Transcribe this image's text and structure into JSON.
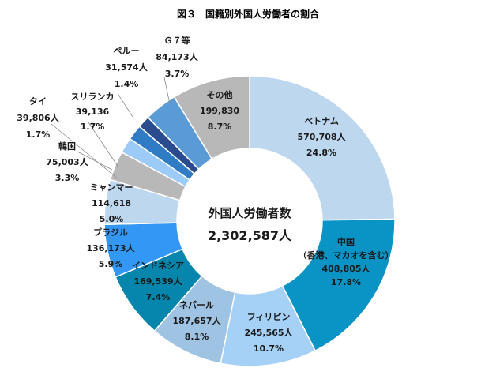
{
  "chart_data": {
    "type": "pie",
    "title": "図３　国籍別外国人労働者の割合",
    "center_title": "外国人労働者数",
    "center_total": "2,302,587人",
    "slices": [
      {
        "label": "ベトナム",
        "count": "570,708人",
        "percent": "24.8%",
        "value": 570708,
        "color": "#bdd7ee"
      },
      {
        "label": "中国",
        "sublabel": "（香港、マカオを含む）",
        "count": "408,805人",
        "percent": "17.8%",
        "value": 408805,
        "color": "#0a94c6"
      },
      {
        "label": "フィリピン",
        "count": "245,565人",
        "percent": "10.7%",
        "value": 245565,
        "color": "#a6d1f7"
      },
      {
        "label": "ネパール",
        "count": "187,657人",
        "percent": "8.1%",
        "value": 187657,
        "color": "#9fc3e3"
      },
      {
        "label": "インドネシア",
        "count": "169,539人",
        "percent": "7.4%",
        "value": 169539,
        "color": "#0686ad"
      },
      {
        "label": "ブラジル",
        "count": "136,173人",
        "percent": "5.9%",
        "value": 136173,
        "color": "#3297f5"
      },
      {
        "label": "ミャンマー",
        "count": "114,618",
        "percent": "5.0%",
        "value": 114618,
        "color": "#bdd7ee"
      },
      {
        "label": "韓国",
        "count": "75,003人",
        "percent": "3.3%",
        "value": 75003,
        "color": "#b8b8b8"
      },
      {
        "label": "タイ",
        "count": "39,806人",
        "percent": "1.7%",
        "value": 39806,
        "color": "#9ccbf7"
      },
      {
        "label": "スリランカ",
        "count": "39,136",
        "percent": "1.7%",
        "value": 39136,
        "color": "#2f7bc4"
      },
      {
        "label": "ペルー",
        "count": "31,574人",
        "percent": "1.4%",
        "value": 31574,
        "color": "#2a4c8f"
      },
      {
        "label": "Ｇ７等",
        "count": "84,173人",
        "percent": "3.7%",
        "value": 84173,
        "color": "#5b9bd5"
      },
      {
        "label": "その他",
        "count": "199,830",
        "percent": "8.7%",
        "value": 199830,
        "color": "#b8b8b8"
      }
    ]
  }
}
